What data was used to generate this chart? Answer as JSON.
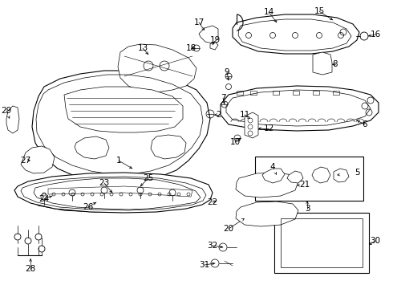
{
  "bg_color": "#ffffff",
  "line_color": "#000000",
  "fig_width": 4.9,
  "fig_height": 3.6,
  "dpi": 100
}
